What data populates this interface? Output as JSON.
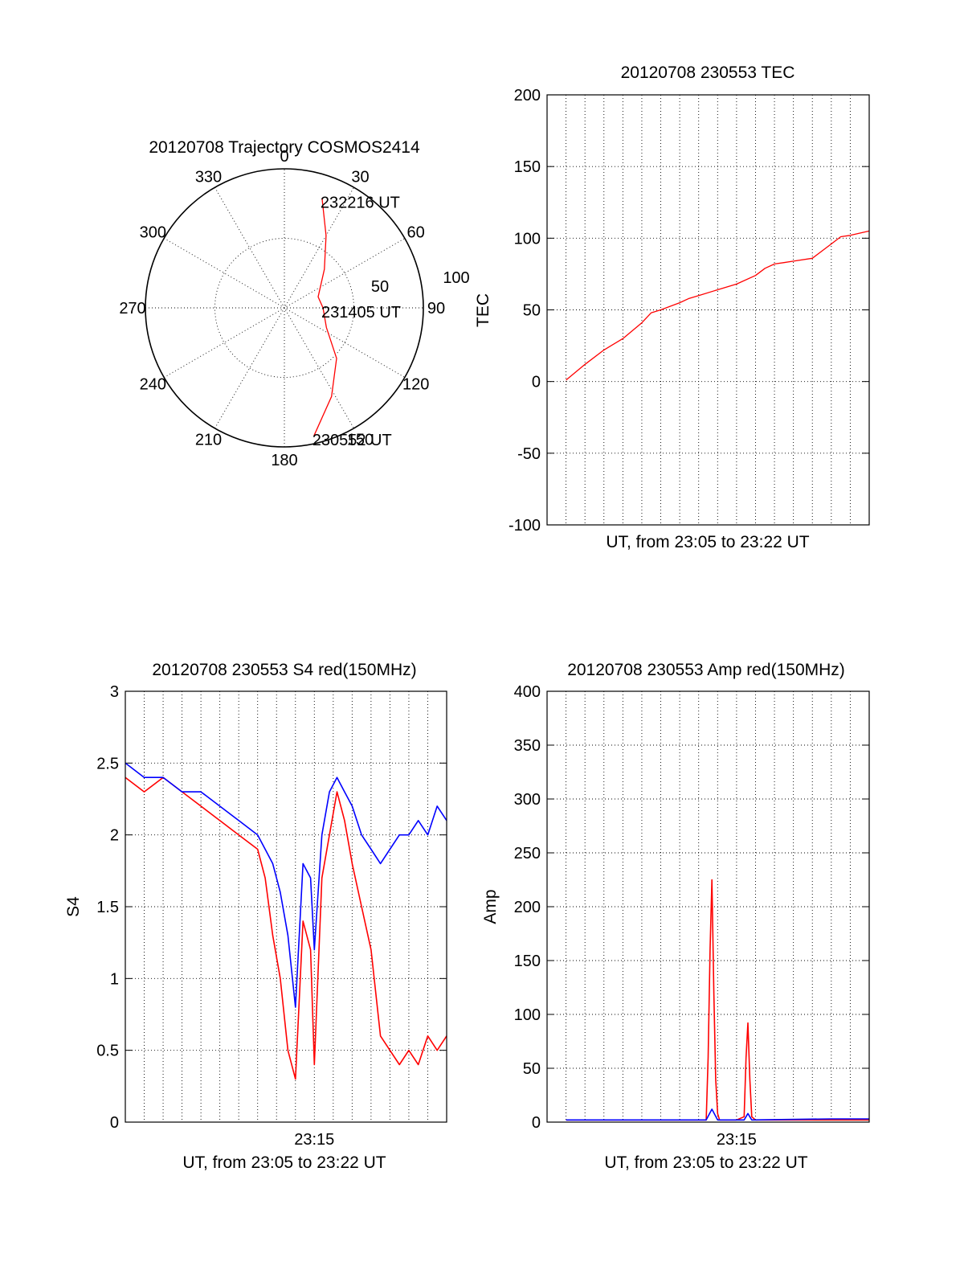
{
  "chart_data": [
    {
      "type": "polar",
      "title": "20120708 Trajectory COSMOS2414",
      "azimuth_labels": [
        "0",
        "30",
        "60",
        "90",
        "120",
        "150",
        "180",
        "210",
        "240",
        "270",
        "300",
        "330"
      ],
      "radial_labels": [
        "50",
        "100"
      ],
      "radial_range": [
        0,
        100
      ],
      "grid": true,
      "trajectory_color": "#ff0000",
      "trajectory": [
        {
          "azimuth_deg": 19,
          "elevation_deg": 15,
          "label": "232216 UT"
        },
        {
          "azimuth_deg": 30,
          "elevation_deg": 36
        },
        {
          "azimuth_deg": 46,
          "elevation_deg": 54
        },
        {
          "azimuth_deg": 72,
          "elevation_deg": 67
        },
        {
          "azimuth_deg": 90,
          "elevation_deg": 65,
          "label": "231405 UT"
        },
        {
          "azimuth_deg": 115,
          "elevation_deg": 60
        },
        {
          "azimuth_deg": 134,
          "elevation_deg": 43
        },
        {
          "azimuth_deg": 152,
          "elevation_deg": 25
        },
        {
          "azimuth_deg": 167,
          "elevation_deg": 5,
          "label": "230552 UT"
        }
      ]
    },
    {
      "type": "line",
      "title": "20120708 230553 TEC",
      "xlabel": "UT, from 23:05 to 23:22 UT",
      "ylabel": "TEC",
      "ylim": [
        -100,
        200
      ],
      "yticks": [
        "-100",
        "-50",
        "0",
        "50",
        "100",
        "150",
        "200"
      ],
      "xlim_min": [
        5,
        22
      ],
      "grid": true,
      "series": [
        {
          "color": "#ff0000",
          "x": [
            6.0,
            7.0,
            8.0,
            9.0,
            10.0,
            10.5,
            11.0,
            12.0,
            12.5,
            13.0,
            14.0,
            15.0,
            16.0,
            16.5,
            17.0,
            17.5,
            18.0,
            19.0,
            20.0,
            20.5,
            21.0,
            22.0
          ],
          "y": [
            1,
            12,
            22,
            30,
            41,
            48,
            50,
            55,
            58,
            60,
            64,
            68,
            74,
            79,
            82,
            83,
            84,
            86,
            96,
            101,
            102,
            105
          ]
        }
      ]
    },
    {
      "type": "line",
      "title": "20120708 230553 S4 red(150MHz)",
      "xlabel": "UT, from 23:05 to 23:22 UT",
      "ylabel": "S4",
      "ylim": [
        0,
        3
      ],
      "yticks": [
        "0",
        "0.5",
        "1",
        "1.5",
        "2",
        "2.5",
        "3"
      ],
      "xticks": [
        "23:15"
      ],
      "xlim_min": [
        5,
        22
      ],
      "grid": true,
      "series": [
        {
          "color": "#ff0000",
          "x": [
            5.0,
            6.0,
            7.0,
            8.0,
            9.0,
            10.0,
            11.0,
            12.0,
            12.4,
            12.8,
            13.2,
            13.6,
            14.0,
            14.4,
            14.8,
            15.0,
            15.4,
            15.8,
            16.2,
            16.6,
            17.0,
            17.5,
            18.0,
            18.5,
            19.0,
            19.5,
            20.0,
            20.5,
            21.0,
            21.5,
            22.0
          ],
          "y": [
            2.4,
            2.3,
            2.4,
            2.3,
            2.2,
            2.1,
            2.0,
            1.9,
            1.7,
            1.3,
            1.0,
            0.5,
            0.3,
            1.4,
            1.2,
            0.4,
            1.7,
            2.0,
            2.3,
            2.1,
            1.8,
            1.5,
            1.2,
            0.6,
            0.5,
            0.4,
            0.5,
            0.4,
            0.6,
            0.5,
            0.6
          ]
        },
        {
          "color": "#0000ff",
          "x": [
            5.0,
            6.0,
            7.0,
            8.0,
            9.0,
            10.0,
            11.0,
            12.0,
            12.4,
            12.8,
            13.2,
            13.6,
            14.0,
            14.4,
            14.8,
            15.0,
            15.4,
            15.8,
            16.2,
            16.6,
            17.0,
            17.5,
            18.0,
            18.5,
            19.0,
            19.5,
            20.0,
            20.5,
            21.0,
            21.5,
            22.0
          ],
          "y": [
            2.5,
            2.4,
            2.4,
            2.3,
            2.3,
            2.2,
            2.1,
            2.0,
            1.9,
            1.8,
            1.6,
            1.3,
            0.8,
            1.8,
            1.7,
            1.2,
            2.0,
            2.3,
            2.4,
            2.3,
            2.2,
            2.0,
            1.9,
            1.8,
            1.9,
            2.0,
            2.0,
            2.1,
            2.0,
            2.2,
            2.1
          ]
        }
      ]
    },
    {
      "type": "line",
      "title": "20120708 230553 Amp red(150MHz)",
      "xlabel": "UT, from 23:05 to 23:22 UT",
      "ylabel": "Amp",
      "ylim": [
        0,
        400
      ],
      "yticks": [
        "0",
        "50",
        "100",
        "150",
        "200",
        "250",
        "300",
        "350",
        "400"
      ],
      "xticks": [
        "23:15"
      ],
      "xlim_min": [
        5,
        22
      ],
      "grid": true,
      "series": [
        {
          "color": "#ff0000",
          "x": [
            6.0,
            12.5,
            13.4,
            13.5,
            13.6,
            13.7,
            13.8,
            13.9,
            14.0,
            14.1,
            15.0,
            15.4,
            15.5,
            15.6,
            15.7,
            15.8,
            16.0,
            22.0
          ],
          "y": [
            2,
            2,
            2,
            60,
            160,
            225,
            120,
            40,
            8,
            2,
            2,
            5,
            60,
            92,
            40,
            5,
            2,
            2
          ]
        },
        {
          "color": "#0000ff",
          "x": [
            6.0,
            13.4,
            13.7,
            14.0,
            15.4,
            15.6,
            15.8,
            20.0,
            22.0
          ],
          "y": [
            2,
            2,
            12,
            2,
            2,
            8,
            2,
            3,
            3
          ]
        }
      ]
    }
  ]
}
